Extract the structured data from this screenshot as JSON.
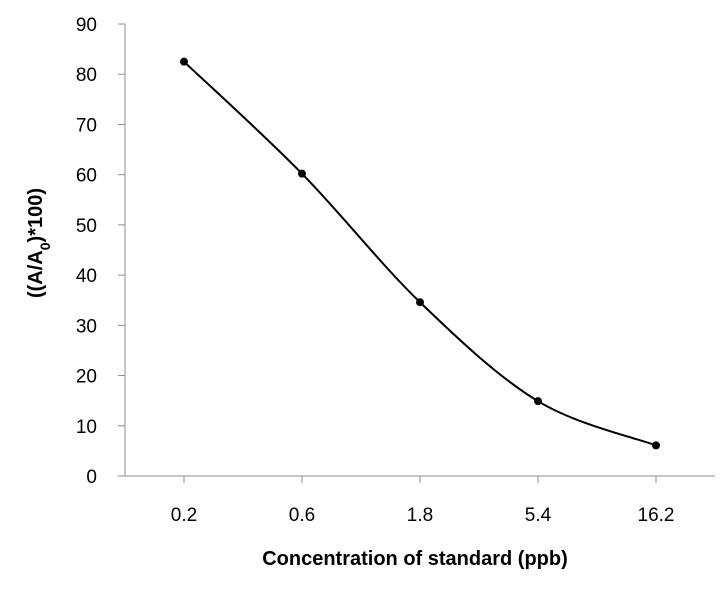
{
  "chart_data": {
    "type": "line",
    "categories": [
      "0.2",
      "0.6",
      "1.8",
      "5.4",
      "16.2"
    ],
    "series": [
      {
        "values": [
          82.5,
          60.2,
          34.6,
          14.9,
          6.1
        ]
      }
    ],
    "xlabel": "Concentration of standard (ppb)",
    "ylabel": {
      "prefix": "((A/A",
      "subscript": "0",
      "suffix": ")*100)"
    },
    "ylim": [
      0,
      90
    ],
    "yticks": [
      0,
      10,
      20,
      30,
      40,
      50,
      60,
      70,
      80,
      90
    ],
    "smooth": true,
    "markers": true,
    "grid": false,
    "legend": "none",
    "line_color": "#000000"
  }
}
